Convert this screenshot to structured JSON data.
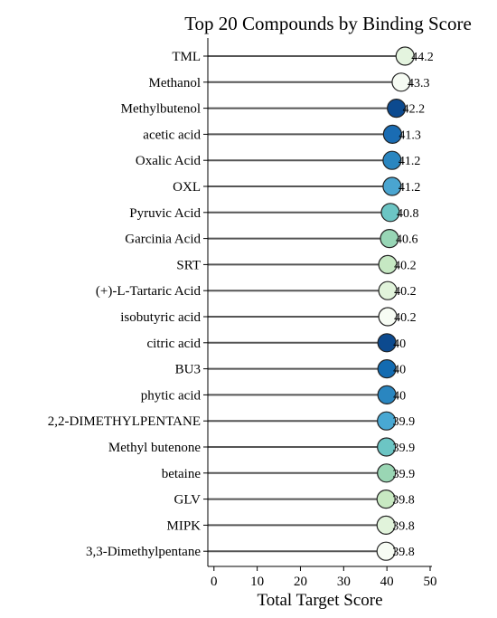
{
  "chart_data": {
    "type": "lollipop",
    "orientation": "horizontal",
    "title": "Top 20 Compounds by Binding Score",
    "xlabel": "Total Target Score",
    "ylabel": "",
    "xlim": [
      -1,
      50
    ],
    "xticks": [
      0,
      10,
      20,
      30,
      40,
      50
    ],
    "grid": false,
    "categories": [
      "TML",
      "Methanol",
      "Methylbutenol",
      "acetic acid",
      "Oxalic Acid",
      "OXL",
      "Pyruvic Acid",
      "Garcinia Acid",
      "SRT",
      "(+)-L-Tartaric Acid",
      "isobutyric acid",
      "citric acid",
      "BU3",
      "phytic acid",
      "2,2-DIMETHYLPENTANE",
      "Methyl butenone",
      "betaine",
      "GLV",
      "MIPK",
      "3,3-Dimethylpentane"
    ],
    "values": [
      44.2,
      43.3,
      42.2,
      41.3,
      41.2,
      41.2,
      40.8,
      40.6,
      40.2,
      40.2,
      40.2,
      40,
      40,
      40,
      39.9,
      39.9,
      39.9,
      39.8,
      39.8,
      39.8
    ],
    "value_labels": [
      "44.2",
      "43.3",
      "42.2",
      "41.3",
      "41.2",
      "41.2",
      "40.8",
      "40.6",
      "40.2",
      "40.2",
      "40.2",
      "40",
      "40",
      "40",
      "39.9",
      "39.9",
      "39.9",
      "39.8",
      "39.8",
      "39.8"
    ],
    "colors": [
      "#e4f4df",
      "#f6fbf3",
      "#0c4a8f",
      "#1a6cb3",
      "#2a86c0",
      "#4aa5d0",
      "#6cc5c4",
      "#98d6b6",
      "#c6e8c3",
      "#e1f3db",
      "#f7fcf4",
      "#0c4a8f",
      "#136bb1",
      "#2a86c0",
      "#49a8d3",
      "#6cc5c4",
      "#9ad6b4",
      "#c8e9c2",
      "#e1f3db",
      "#f7fcf4"
    ],
    "stem_color": "#555555"
  }
}
